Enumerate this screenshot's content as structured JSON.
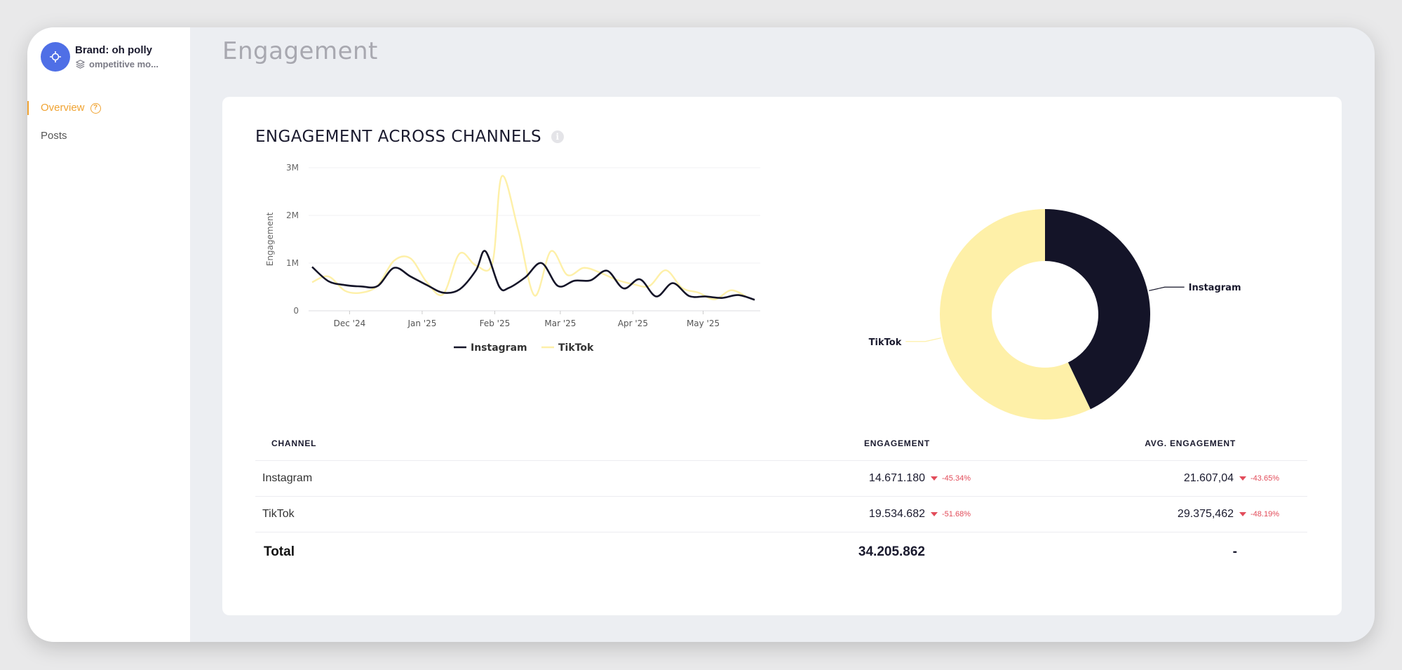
{
  "brand": {
    "name": "Brand: oh polly",
    "subtitle": "ompetitive mo..."
  },
  "nav": {
    "items": [
      {
        "label": "Overview",
        "active": true,
        "help": "?"
      },
      {
        "label": "Posts",
        "active": false
      }
    ]
  },
  "page": {
    "title": "Engagement"
  },
  "card": {
    "title": "ENGAGEMENT ACROSS CHANNELS",
    "info": "i"
  },
  "colors": {
    "instagram": "#141428",
    "tiktok": "#fef0a8",
    "accent": "#f0a332",
    "negative": "#e24c5a",
    "brand_avatar": "#4f6fe6"
  },
  "chart_data": [
    {
      "type": "line",
      "ylabel": "Engagement",
      "yticks": [
        "0",
        "1M",
        "2M",
        "3M"
      ],
      "ylim": [
        0,
        3000000
      ],
      "xticks": [
        "Dec '24",
        "Jan '25",
        "Feb '25",
        "Mar '25",
        "Apr '25",
        "May '25"
      ],
      "xtick_dates": [
        "2024-12-01",
        "2025-01-01",
        "2025-02-01",
        "2025-03-01",
        "2025-04-01",
        "2025-05-01"
      ],
      "grid": true,
      "legend": "bottom-center",
      "series": [
        {
          "name": "Instagram",
          "points": [
            [
              "2024-11-15",
              920000
            ],
            [
              "2024-11-22",
              620000
            ],
            [
              "2024-11-29",
              540000
            ],
            [
              "2024-12-06",
              510000
            ],
            [
              "2024-12-13",
              520000
            ],
            [
              "2024-12-20",
              900000
            ],
            [
              "2024-12-27",
              720000
            ],
            [
              "2025-01-03",
              540000
            ],
            [
              "2025-01-10",
              380000
            ],
            [
              "2025-01-17",
              450000
            ],
            [
              "2025-01-24",
              850000
            ],
            [
              "2025-01-28",
              1250000
            ],
            [
              "2025-02-03",
              500000
            ],
            [
              "2025-02-07",
              480000
            ],
            [
              "2025-02-14",
              700000
            ],
            [
              "2025-02-21",
              1000000
            ],
            [
              "2025-02-28",
              520000
            ],
            [
              "2025-03-07",
              630000
            ],
            [
              "2025-03-14",
              640000
            ],
            [
              "2025-03-21",
              840000
            ],
            [
              "2025-03-28",
              470000
            ],
            [
              "2025-04-04",
              660000
            ],
            [
              "2025-04-11",
              300000
            ],
            [
              "2025-04-18",
              580000
            ],
            [
              "2025-04-25",
              310000
            ],
            [
              "2025-05-02",
              300000
            ],
            [
              "2025-05-09",
              270000
            ],
            [
              "2025-05-16",
              330000
            ],
            [
              "2025-05-23",
              230000
            ]
          ]
        },
        {
          "name": "TikTok",
          "points": [
            [
              "2024-11-15",
              600000
            ],
            [
              "2024-11-22",
              720000
            ],
            [
              "2024-11-29",
              420000
            ],
            [
              "2024-12-06",
              380000
            ],
            [
              "2024-12-13",
              530000
            ],
            [
              "2024-12-20",
              1050000
            ],
            [
              "2024-12-27",
              1100000
            ],
            [
              "2025-01-03",
              600000
            ],
            [
              "2025-01-10",
              350000
            ],
            [
              "2025-01-17",
              1200000
            ],
            [
              "2025-01-24",
              950000
            ],
            [
              "2025-01-31",
              1000000
            ],
            [
              "2025-02-04",
              2820000
            ],
            [
              "2025-02-11",
              1700000
            ],
            [
              "2025-02-18",
              320000
            ],
            [
              "2025-02-25",
              1250000
            ],
            [
              "2025-03-04",
              750000
            ],
            [
              "2025-03-11",
              900000
            ],
            [
              "2025-03-18",
              800000
            ],
            [
              "2025-03-25",
              650000
            ],
            [
              "2025-04-01",
              560000
            ],
            [
              "2025-04-08",
              520000
            ],
            [
              "2025-04-15",
              850000
            ],
            [
              "2025-04-22",
              480000
            ],
            [
              "2025-04-29",
              380000
            ],
            [
              "2025-05-06",
              240000
            ],
            [
              "2025-05-13",
              430000
            ],
            [
              "2025-05-20",
              280000
            ]
          ]
        }
      ]
    },
    {
      "type": "pie",
      "donut": true,
      "slices": [
        {
          "name": "Instagram",
          "value": 14671180
        },
        {
          "name": "TikTok",
          "value": 19534682
        }
      ]
    }
  ],
  "table": {
    "headers": [
      "CHANNEL",
      "ENGAGEMENT",
      "AVG. ENGAGEMENT"
    ],
    "rows": [
      {
        "channel": "Instagram",
        "engagement": "14.671.180",
        "engagement_delta": "-45.34%",
        "avg": "21.607,04",
        "avg_delta": "-43.65%"
      },
      {
        "channel": "TikTok",
        "engagement": "19.534.682",
        "engagement_delta": "-51.68%",
        "avg": "29.375,462",
        "avg_delta": "-48.19%"
      }
    ],
    "total": {
      "label": "Total",
      "engagement": "34.205.862",
      "avg": "-"
    }
  }
}
